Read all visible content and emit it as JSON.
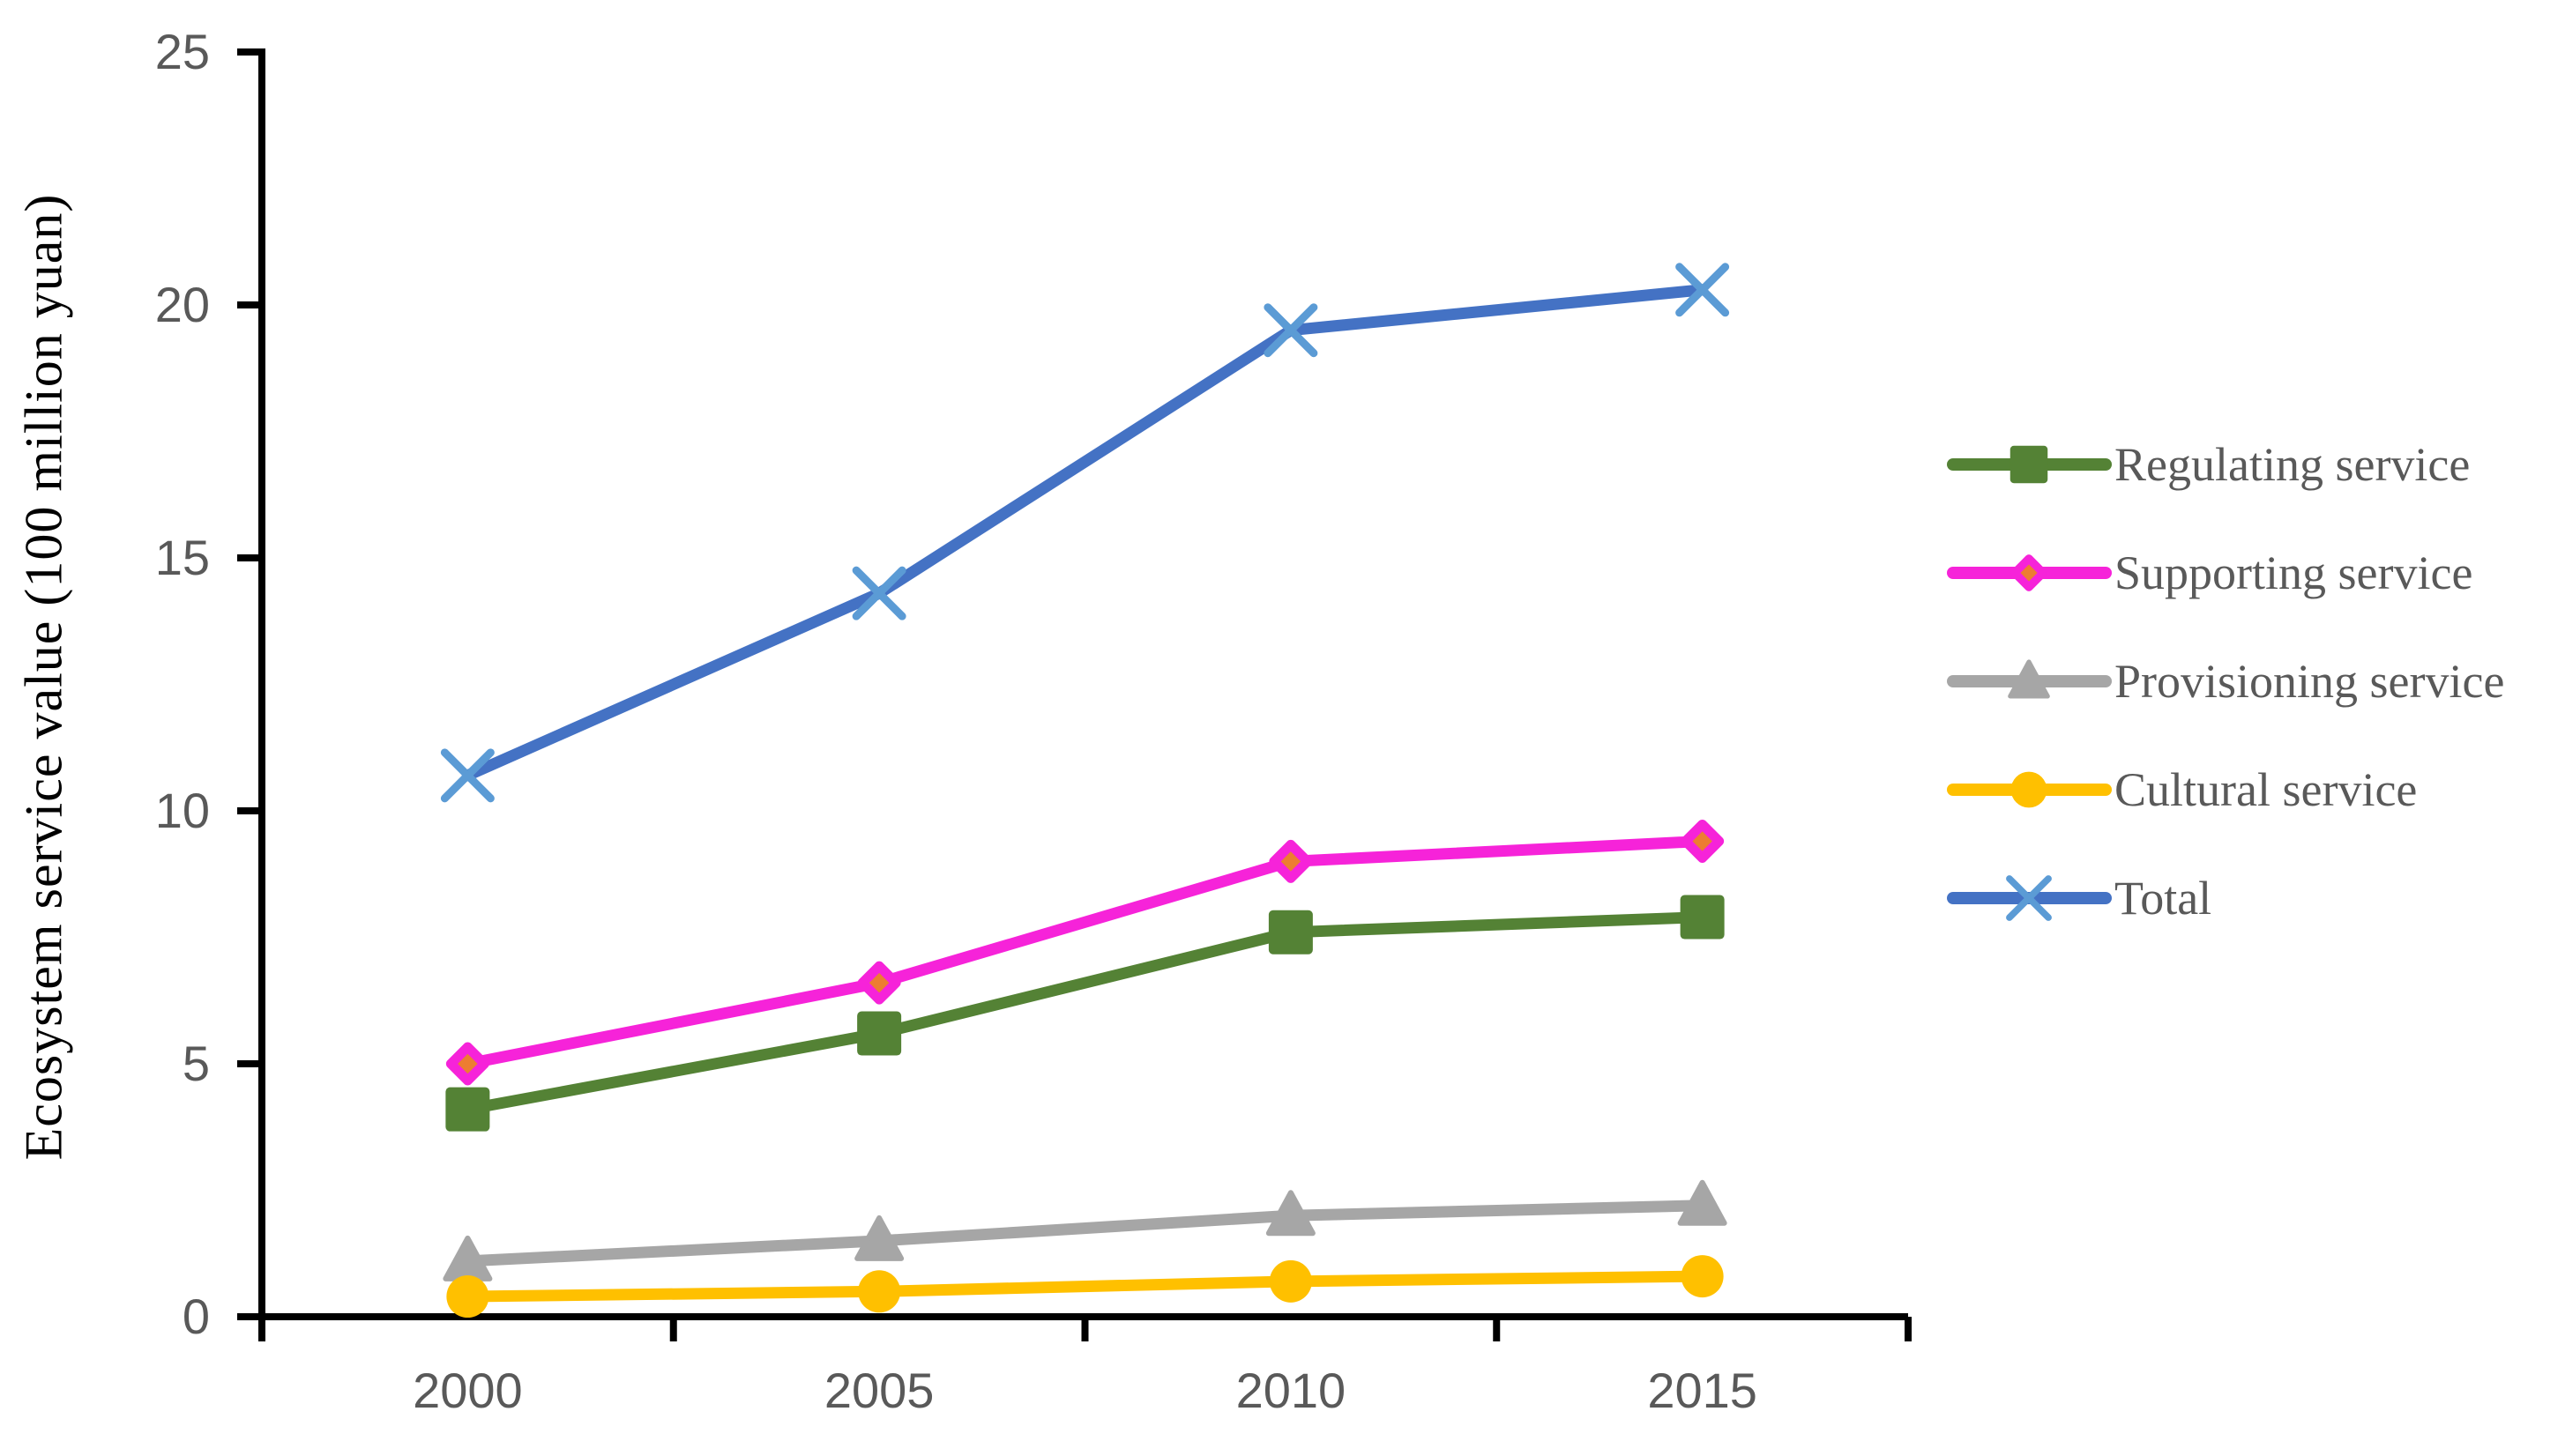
{
  "chart_data": {
    "type": "line",
    "title": "",
    "xlabel": "",
    "ylabel": "Ecosystem service value (100 million yuan)",
    "categories": [
      "2000",
      "2005",
      "2010",
      "2015"
    ],
    "y_ticks": [
      0,
      5,
      10,
      15,
      20,
      25
    ],
    "ylim": [
      0,
      25
    ],
    "grid": false,
    "legend_position": "right",
    "series": [
      {
        "name": "Regulating service",
        "values": [
          4.1,
          5.6,
          7.6,
          7.9
        ],
        "color": "#548235",
        "marker": "square",
        "marker_fill": "#548235"
      },
      {
        "name": "Supporting service",
        "values": [
          5.0,
          6.6,
          9.0,
          9.4
        ],
        "color": "#f623d9",
        "marker": "diamond",
        "marker_fill": "#ed7d31"
      },
      {
        "name": "Provisioning service",
        "values": [
          1.1,
          1.5,
          2.0,
          2.2
        ],
        "color": "#a6a6a6",
        "marker": "triangle",
        "marker_fill": "#a6a6a6"
      },
      {
        "name": "Cultural service",
        "values": [
          0.4,
          0.5,
          0.7,
          0.8
        ],
        "color": "#ffc000",
        "marker": "circle",
        "marker_fill": "#ffc000"
      },
      {
        "name": "Total",
        "values": [
          10.7,
          14.3,
          19.5,
          20.3
        ],
        "color": "#4472c4",
        "marker": "x",
        "marker_fill": "#5b9bd5"
      }
    ],
    "colors": {
      "axis": "#000000",
      "tick_label": "#595959",
      "legend_text": "#595959",
      "axis_title": "#000000",
      "background": "#ffffff"
    }
  }
}
